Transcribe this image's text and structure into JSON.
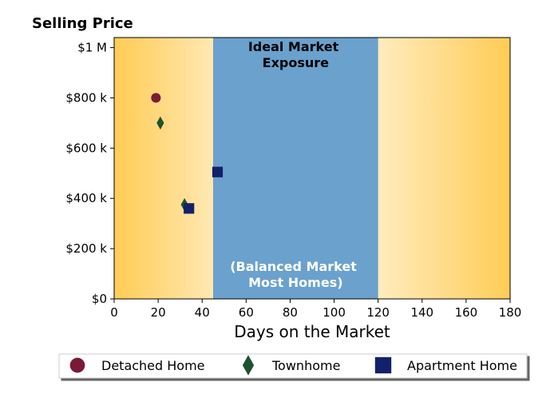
{
  "chart_data": {
    "type": "scatter",
    "title": "Selling Price",
    "xlabel": "Days on the Market",
    "ylabel": "",
    "xlim": [
      0,
      180
    ],
    "ylim": [
      0,
      1040000
    ],
    "x_ticks": [
      {
        "value": 0,
        "label": "0"
      },
      {
        "value": 20,
        "label": "20"
      },
      {
        "value": 40,
        "label": "40"
      },
      {
        "value": 60,
        "label": "60"
      },
      {
        "value": 80,
        "label": "80"
      },
      {
        "value": 100,
        "label": "100"
      },
      {
        "value": 120,
        "label": "120"
      },
      {
        "value": 140,
        "label": "140"
      },
      {
        "value": 160,
        "label": "160"
      },
      {
        "value": 180,
        "label": "180"
      }
    ],
    "y_ticks": [
      {
        "value": 0,
        "label": "$0"
      },
      {
        "value": 200000,
        "label": "$200 k"
      },
      {
        "value": 400000,
        "label": "$400 k"
      },
      {
        "value": 600000,
        "label": "$600 k"
      },
      {
        "value": 800000,
        "label": "$800 k"
      },
      {
        "value": 1000000,
        "label": "$1 M"
      }
    ],
    "band": {
      "x_start": 45,
      "x_end": 120,
      "color": "#6aa1cd",
      "top_label": [
        "Ideal Market",
        "Exposure"
      ],
      "bottom_label": [
        "(Balanced Market",
        "Most Homes)"
      ]
    },
    "background_gradient": {
      "edge_color": "#ffcc55",
      "center_color": "#ffffff"
    },
    "series": [
      {
        "name": "Detached Home",
        "marker": "circle",
        "color": "#7b1a36",
        "points": [
          [
            19,
            800000
          ]
        ]
      },
      {
        "name": "Townhome",
        "marker": "diamond",
        "color": "#1f5230",
        "points": [
          [
            21,
            700000
          ],
          [
            32,
            375000
          ]
        ]
      },
      {
        "name": "Apartment Home",
        "marker": "square",
        "color": "#13216a",
        "points": [
          [
            34,
            360000
          ],
          [
            47,
            505000
          ]
        ]
      }
    ],
    "legend": {
      "placement": "bottom"
    },
    "grid": false
  }
}
